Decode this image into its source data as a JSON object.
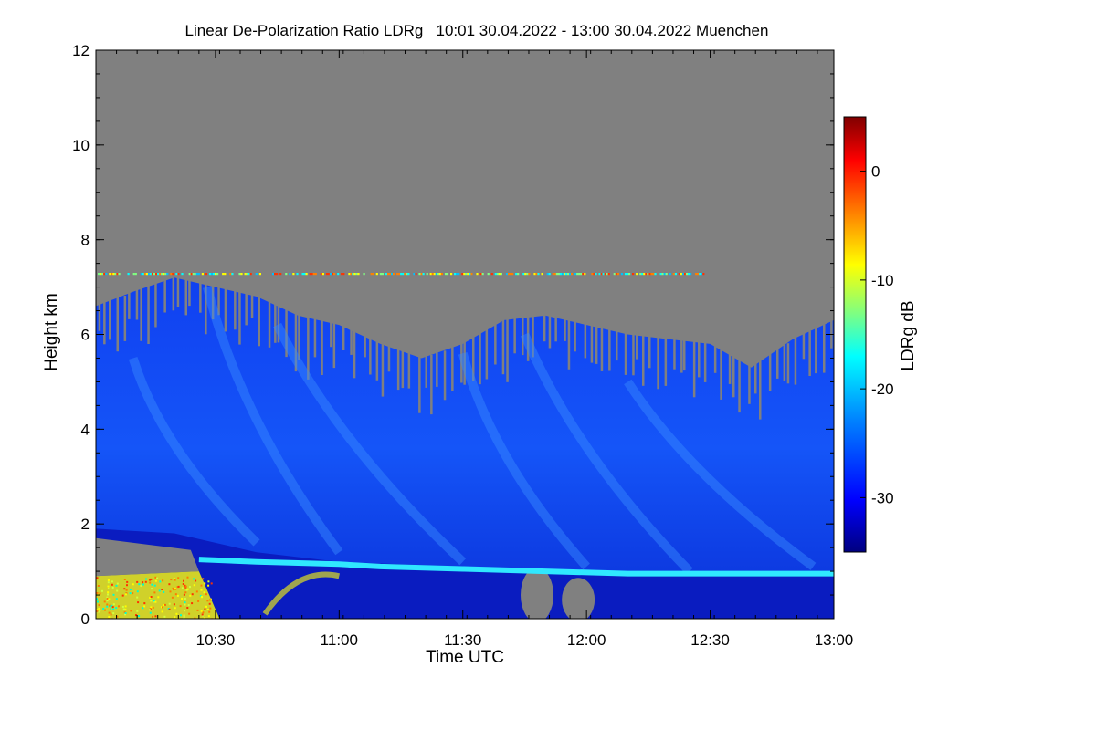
{
  "chart_data": {
    "type": "heatmap",
    "title": "Linear De-Polarization Ratio LDRg   10:01 30.04.2022 - 13:00 30.04.2022 Muenchen",
    "xlabel": "Time UTC",
    "ylabel": "Height km",
    "x_range_minutes": [
      601,
      780
    ],
    "x_ticks": [
      {
        "label": "10:30",
        "value": 630
      },
      {
        "label": "11:00",
        "value": 660
      },
      {
        "label": "11:30",
        "value": 690
      },
      {
        "label": "12:00",
        "value": 720
      },
      {
        "label": "12:30",
        "value": 750
      },
      {
        "label": "13:00",
        "value": 780
      }
    ],
    "ylim": [
      0,
      12
    ],
    "y_ticks": [
      0,
      2,
      4,
      6,
      8,
      10,
      12
    ],
    "colorbar": {
      "label": "LDRg dB",
      "range": [
        -35,
        5
      ],
      "ticks": [
        0,
        -10,
        -20,
        -30
      ],
      "colors": [
        "#00007f",
        "#0000ff",
        "#0080ff",
        "#00ffff",
        "#80ff80",
        "#ffff00",
        "#ff8000",
        "#ff0000",
        "#7f0000"
      ]
    },
    "no_data_color": "#808080",
    "features": {
      "cloud_top_km": [
        [
          601,
          6.6
        ],
        [
          610,
          6.9
        ],
        [
          620,
          7.2
        ],
        [
          630,
          7.0
        ],
        [
          640,
          6.8
        ],
        [
          650,
          6.4
        ],
        [
          660,
          6.2
        ],
        [
          670,
          5.8
        ],
        [
          680,
          5.5
        ],
        [
          690,
          5.8
        ],
        [
          700,
          6.3
        ],
        [
          710,
          6.4
        ],
        [
          720,
          6.2
        ],
        [
          730,
          6.0
        ],
        [
          740,
          5.9
        ],
        [
          750,
          5.8
        ],
        [
          760,
          5.3
        ],
        [
          770,
          5.9
        ],
        [
          780,
          6.3
        ]
      ],
      "cirrus_layer_km": 7.3,
      "cirrus_layer_time": [
        601,
        749
      ],
      "boundary_layer_top_km": [
        [
          601,
          1.9
        ],
        [
          620,
          1.8
        ],
        [
          630,
          1.6
        ],
        [
          640,
          1.4
        ],
        [
          660,
          1.2
        ],
        [
          690,
          1.1
        ],
        [
          720,
          1.0
        ],
        [
          750,
          1.0
        ],
        [
          780,
          1.0
        ]
      ]
    }
  }
}
